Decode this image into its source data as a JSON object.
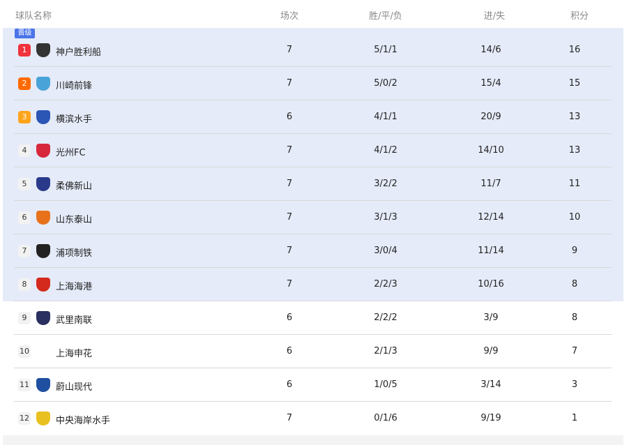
{
  "headers": {
    "team": "球队名称",
    "played": "场次",
    "wdl": "胜/平/负",
    "goals": "进/失",
    "points": "积分"
  },
  "promotion_badge": "晋级",
  "colors": {
    "promo_bg": "#e5ebf8",
    "rank1": "#f0323c",
    "rank2": "#ff6a00",
    "rank3": "#ffa41b",
    "badge": "#4a74e8"
  },
  "rows": [
    {
      "rank": "1",
      "team": "神户胜利船",
      "played": "7",
      "wdl": "5/1/1",
      "goals": "14/6",
      "points": "16",
      "logo": "#333"
    },
    {
      "rank": "2",
      "team": "川崎前锋",
      "played": "7",
      "wdl": "5/0/2",
      "goals": "15/4",
      "points": "15",
      "logo": "#4aa3d8"
    },
    {
      "rank": "3",
      "team": "横滨水手",
      "played": "6",
      "wdl": "4/1/1",
      "goals": "20/9",
      "points": "13",
      "logo": "#2b56b5"
    },
    {
      "rank": "4",
      "team": "光州FC",
      "played": "7",
      "wdl": "4/1/2",
      "goals": "14/10",
      "points": "13",
      "logo": "#d8283c"
    },
    {
      "rank": "5",
      "team": "柔佛新山",
      "played": "7",
      "wdl": "3/2/2",
      "goals": "11/7",
      "points": "11",
      "logo": "#2a3a8a"
    },
    {
      "rank": "6",
      "team": "山东泰山",
      "played": "7",
      "wdl": "3/1/3",
      "goals": "12/14",
      "points": "10",
      "logo": "#e8721c"
    },
    {
      "rank": "7",
      "team": "浦项制铁",
      "played": "7",
      "wdl": "3/0/4",
      "goals": "11/14",
      "points": "9",
      "logo": "#222"
    },
    {
      "rank": "8",
      "team": "上海海港",
      "played": "7",
      "wdl": "2/2/3",
      "goals": "10/16",
      "points": "8",
      "logo": "#d42a1e"
    },
    {
      "rank": "9",
      "team": "武里南联",
      "played": "6",
      "wdl": "2/2/2",
      "goals": "3/9",
      "points": "8",
      "logo": "#2a3060"
    },
    {
      "rank": "10",
      "team": "上海申花",
      "played": "6",
      "wdl": "2/1/3",
      "goals": "9/9",
      "points": "7",
      "logo": ""
    },
    {
      "rank": "11",
      "team": "蔚山现代",
      "played": "6",
      "wdl": "1/0/5",
      "goals": "3/14",
      "points": "3",
      "logo": "#1e4fa0"
    },
    {
      "rank": "12",
      "team": "中央海岸水手",
      "played": "7",
      "wdl": "0/1/6",
      "goals": "9/19",
      "points": "1",
      "logo": "#e8c020"
    }
  ]
}
